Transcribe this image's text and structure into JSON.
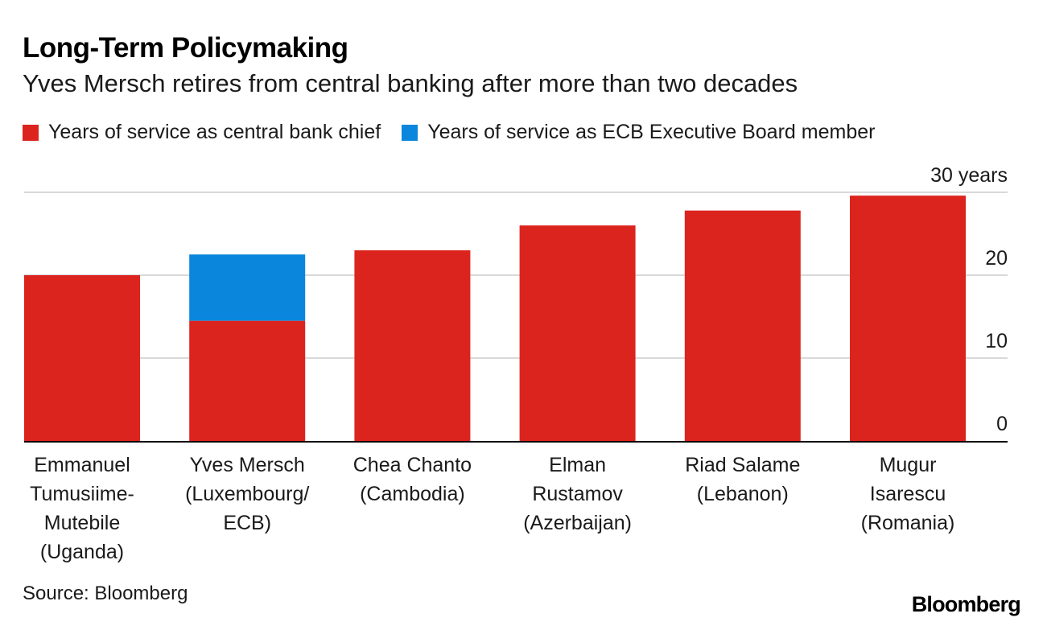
{
  "title": "Long-Term Policymaking",
  "subtitle": "Yves Mersch retires from central banking after more than two decades",
  "source": "Source: Bloomberg",
  "logo": "Bloomberg",
  "chart_data": {
    "type": "bar",
    "stacked": true,
    "categories": [
      [
        "Emmanuel",
        "Tumusiime-",
        "Mutebile",
        "(Uganda)"
      ],
      [
        "Yves Mersch",
        "(Luxembourg/",
        "ECB)"
      ],
      [
        "Chea Chanto",
        "(Cambodia)"
      ],
      [
        "Elman",
        "Rustamov",
        "(Azerbaijan)"
      ],
      [
        "Riad Salame",
        "(Lebanon)"
      ],
      [
        "Mugur",
        "Isarescu",
        "(Romania)"
      ]
    ],
    "series": [
      {
        "name": "Years of service as central bank chief",
        "color": "#dc241f",
        "values": [
          20,
          14.5,
          23,
          26,
          27.8,
          29.6
        ]
      },
      {
        "name": "Years of service as ECB Executive Board member",
        "color": "#0a87dc",
        "values": [
          0,
          8,
          0,
          0,
          0,
          0
        ]
      }
    ],
    "y_ticks": [
      "0",
      "10",
      "20",
      "30 years"
    ],
    "y_tick_values": [
      0,
      10,
      20,
      30
    ],
    "ylim": [
      0,
      30
    ],
    "y_axis_position": "right",
    "grid": true
  }
}
